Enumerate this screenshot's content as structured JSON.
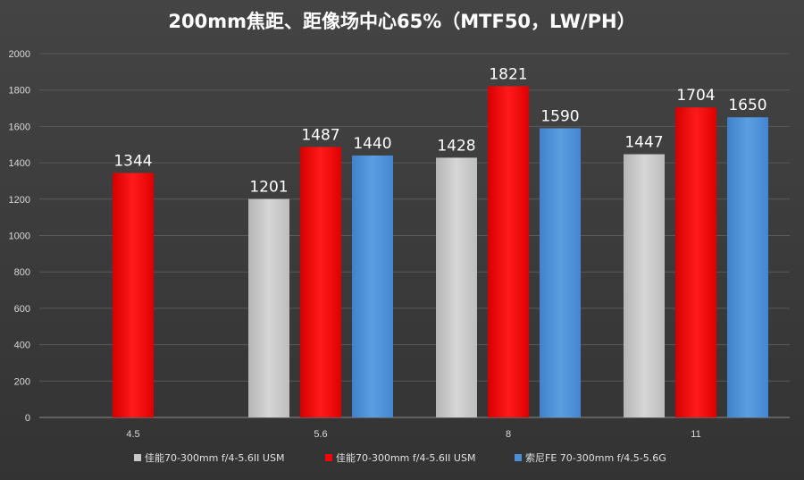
{
  "chart_data": {
    "type": "bar",
    "title": "200mm焦距、距像场中心65%（MTF50，LW/PH）",
    "xlabel": "",
    "ylabel": "",
    "ylim": [
      0,
      2000
    ],
    "yticks": [
      0,
      200,
      400,
      600,
      800,
      1000,
      1200,
      1400,
      1600,
      1800,
      2000
    ],
    "categories": [
      "4.5",
      "5.6",
      "8",
      "11"
    ],
    "series": [
      {
        "name": "佳能70-300mm f/4-5.6II USM",
        "color": "#c8c8c8",
        "values": [
          null,
          1201,
          1428,
          1447
        ]
      },
      {
        "name": "佳能70-300mm f/4-5.6II USM",
        "color": "#ff0000",
        "values": [
          1344,
          1487,
          1821,
          1704
        ]
      },
      {
        "name": "索尼FE 70-300mm f/4.5-5.6G",
        "color": "#4a90d9",
        "values": [
          null,
          1440,
          1590,
          1650
        ]
      }
    ],
    "grid": true,
    "legend_position": "bottom"
  }
}
